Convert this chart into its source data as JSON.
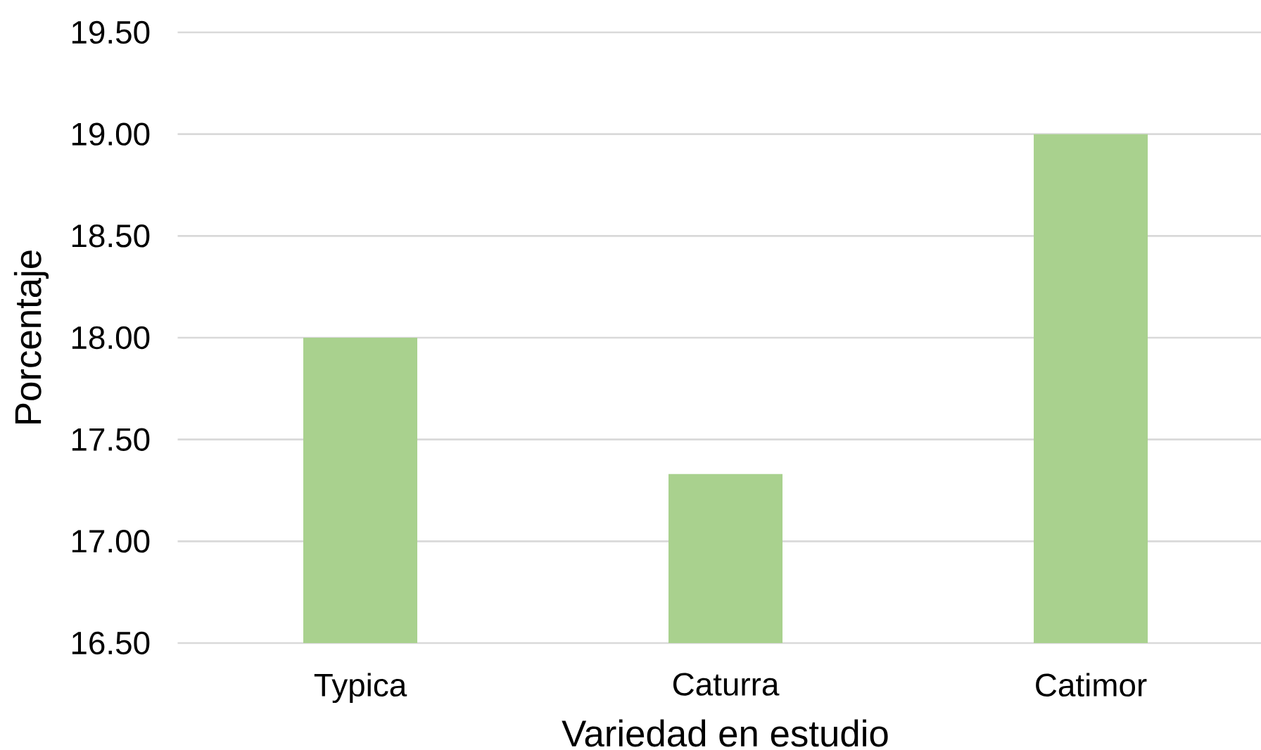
{
  "chart_data": {
    "type": "bar",
    "xlabel": "Variedad en estudio",
    "ylabel": "Porcentaje",
    "categories": [
      "Typica",
      "Caturra",
      "Catimor"
    ],
    "values": [
      18.0,
      17.33,
      19.0
    ],
    "color": "#a9d18e",
    "ylim": [
      16.5,
      19.5
    ],
    "yticks": [
      {
        "value": 16.5,
        "label": "16.50"
      },
      {
        "value": 17.0,
        "label": "17.00"
      },
      {
        "value": 17.5,
        "label": "17.50"
      },
      {
        "value": 18.0,
        "label": "18.00"
      },
      {
        "value": 18.5,
        "label": "18.50"
      },
      {
        "value": 19.0,
        "label": "19.00"
      },
      {
        "value": 19.5,
        "label": "19.50"
      }
    ],
    "grid": "y"
  }
}
